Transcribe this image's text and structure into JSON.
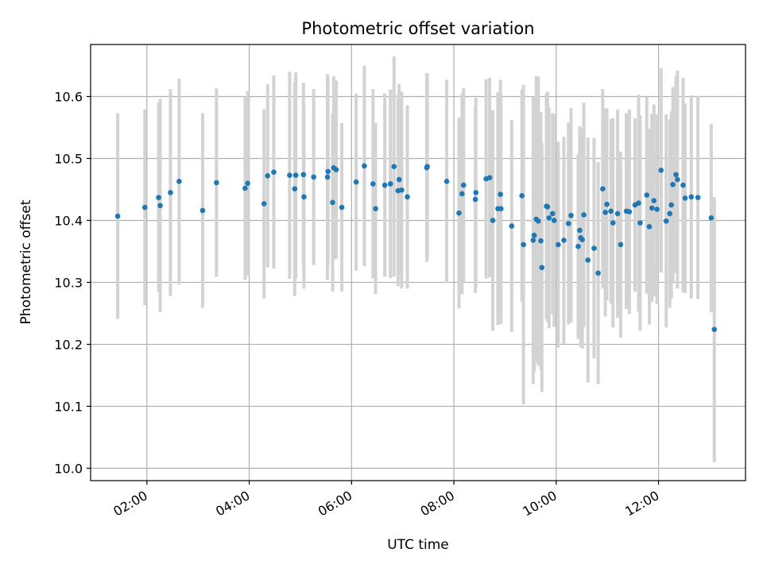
{
  "chart_data": {
    "type": "scatter",
    "title": "Photometric offset variation",
    "xlabel": "UTC time",
    "ylabel": "Photometric offset",
    "grid": true,
    "x_unit": "hours UTC",
    "xlim": [
      0.9,
      13.7
    ],
    "ylim": [
      9.98,
      10.684
    ],
    "x_tick_labels": [
      "02:00",
      "04:00",
      "06:00",
      "08:00",
      "10:00",
      "12:00"
    ],
    "y_tick_labels": [
      "10.0",
      "10.1",
      "10.2",
      "10.3",
      "10.4",
      "10.5",
      "10.6"
    ],
    "marker_color": "#1f77b4",
    "errorbar_color": "#d3d3d3",
    "series": [
      {
        "x": [
          1.43,
          1.96,
          2.23,
          2.26,
          2.46,
          2.63,
          3.09,
          3.36,
          3.92,
          3.97,
          4.29,
          4.36,
          4.48,
          4.79,
          4.89,
          4.91,
          5.06,
          5.07,
          5.26,
          5.53,
          5.54,
          5.63,
          5.65,
          5.7,
          5.81,
          6.09,
          6.25,
          6.42,
          6.47,
          6.65,
          6.76,
          6.83,
          6.91,
          6.93,
          6.98,
          7.09,
          7.47,
          7.48,
          7.86,
          8.1,
          8.16,
          8.19,
          8.42,
          8.43,
          8.63,
          8.7,
          8.76,
          8.86,
          8.91,
          8.92,
          9.13,
          9.33,
          9.36,
          9.55,
          9.57,
          9.61,
          9.65,
          9.7,
          9.72,
          9.81,
          9.83,
          9.86,
          9.93,
          9.96,
          10.04,
          10.15,
          10.24,
          10.29,
          10.43,
          10.46,
          10.48,
          10.51,
          10.54,
          10.62,
          10.74,
          10.82,
          10.91,
          10.96,
          10.99,
          11.07,
          11.11,
          11.2,
          11.26,
          11.37,
          11.43,
          11.54,
          11.61,
          11.64,
          11.77,
          11.82,
          11.87,
          11.91,
          11.97,
          12.05,
          12.15,
          12.22,
          12.25,
          12.28,
          12.34,
          12.37,
          12.48,
          12.52,
          12.64,
          12.77,
          13.03,
          13.09
        ],
        "y": [
          10.407,
          10.421,
          10.437,
          10.424,
          10.445,
          10.463,
          10.416,
          10.461,
          10.452,
          10.46,
          10.427,
          10.472,
          10.478,
          10.473,
          10.451,
          10.473,
          10.474,
          10.438,
          10.47,
          10.47,
          10.479,
          10.429,
          10.485,
          10.482,
          10.421,
          10.462,
          10.488,
          10.459,
          10.419,
          10.457,
          10.459,
          10.487,
          10.448,
          10.466,
          10.449,
          10.438,
          10.485,
          10.487,
          10.463,
          10.412,
          10.443,
          10.457,
          10.434,
          10.445,
          10.467,
          10.469,
          10.4,
          10.419,
          10.442,
          10.419,
          10.391,
          10.44,
          10.361,
          10.368,
          10.376,
          10.402,
          10.399,
          10.367,
          10.324,
          10.423,
          10.422,
          10.404,
          10.411,
          10.4,
          10.361,
          10.368,
          10.395,
          10.408,
          10.358,
          10.384,
          10.372,
          10.369,
          10.409,
          10.336,
          10.355,
          10.315,
          10.451,
          10.413,
          10.426,
          10.415,
          10.396,
          10.411,
          10.361,
          10.415,
          10.414,
          10.425,
          10.428,
          10.396,
          10.441,
          10.39,
          10.42,
          10.432,
          10.418,
          10.481,
          10.399,
          10.411,
          10.425,
          10.458,
          10.474,
          10.466,
          10.457,
          10.436,
          10.438,
          10.437,
          10.404,
          10.224
        ],
        "err": [
          0.166,
          0.158,
          0.153,
          0.172,
          0.167,
          0.166,
          0.157,
          0.152,
          0.148,
          0.149,
          0.153,
          0.148,
          0.156,
          0.167,
          0.173,
          0.166,
          0.148,
          0.148,
          0.142,
          0.166,
          0.152,
          0.144,
          0.148,
          0.144,
          0.136,
          0.143,
          0.162,
          0.153,
          0.138,
          0.148,
          0.152,
          0.178,
          0.154,
          0.154,
          0.159,
          0.148,
          0.152,
          0.151,
          0.164,
          0.154,
          0.162,
          0.157,
          0.151,
          0.153,
          0.161,
          0.161,
          0.178,
          0.188,
          0.185,
          0.186,
          0.171,
          0.171,
          0.258,
          0.232,
          0.221,
          0.231,
          0.233,
          0.208,
          0.201,
          0.182,
          0.186,
          0.178,
          0.162,
          0.172,
          0.166,
          0.167,
          0.163,
          0.173,
          0.149,
          0.168,
          0.176,
          0.176,
          0.181,
          0.198,
          0.178,
          0.179,
          0.161,
          0.168,
          0.155,
          0.149,
          0.169,
          0.168,
          0.15,
          0.158,
          0.165,
          0.14,
          0.175,
          0.174,
          0.159,
          0.158,
          0.152,
          0.155,
          0.153,
          0.165,
          0.172,
          0.152,
          0.151,
          0.157,
          0.159,
          0.176,
          0.173,
          0.153,
          0.164,
          0.164,
          0.152,
          0.214
        ]
      }
    ]
  }
}
